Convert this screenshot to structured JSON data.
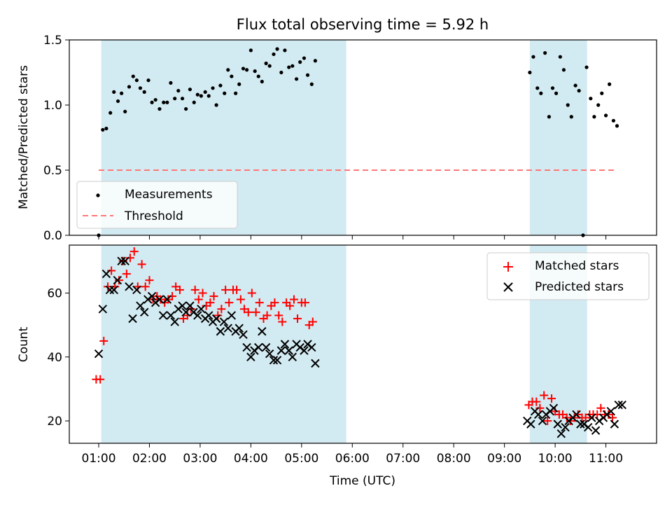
{
  "chart_data": [
    {
      "type": "scatter",
      "title": "Flux total observing time = 5.92 h",
      "ylabel": "Matched/Predicted stars",
      "ylim": [
        0,
        1.5
      ],
      "yticks": [
        "0.0",
        "0.5",
        "1.0",
        "1.5"
      ],
      "xlim_hours": [
        0.42,
        12.0
      ],
      "shaded_spans_hours": [
        [
          1.05,
          5.88
        ],
        [
          9.5,
          10.63
        ]
      ],
      "shade_color": "#add8e6",
      "legend_position": "lower-left",
      "series": [
        {
          "name": "Measurements",
          "color": "#000000",
          "marker": "dot",
          "points": [
            [
              1.0,
              0.0
            ],
            [
              1.08,
              0.81
            ],
            [
              1.15,
              0.82
            ],
            [
              1.23,
              0.94
            ],
            [
              1.3,
              1.1
            ],
            [
              1.38,
              1.03
            ],
            [
              1.45,
              1.09
            ],
            [
              1.52,
              0.95
            ],
            [
              1.6,
              1.14
            ],
            [
              1.68,
              1.22
            ],
            [
              1.75,
              1.19
            ],
            [
              1.82,
              1.13
            ],
            [
              1.9,
              1.1
            ],
            [
              1.98,
              1.19
            ],
            [
              2.05,
              1.02
            ],
            [
              2.12,
              1.04
            ],
            [
              2.2,
              0.97
            ],
            [
              2.28,
              1.02
            ],
            [
              2.35,
              1.02
            ],
            [
              2.42,
              1.17
            ],
            [
              2.5,
              1.05
            ],
            [
              2.57,
              1.11
            ],
            [
              2.65,
              1.05
            ],
            [
              2.72,
              0.97
            ],
            [
              2.8,
              1.12
            ],
            [
              2.88,
              1.02
            ],
            [
              2.95,
              1.08
            ],
            [
              3.02,
              1.07
            ],
            [
              3.1,
              1.1
            ],
            [
              3.17,
              1.07
            ],
            [
              3.25,
              1.13
            ],
            [
              3.32,
              1.0
            ],
            [
              3.4,
              1.15
            ],
            [
              3.48,
              1.09
            ],
            [
              3.55,
              1.27
            ],
            [
              3.62,
              1.22
            ],
            [
              3.7,
              1.09
            ],
            [
              3.77,
              1.16
            ],
            [
              3.85,
              1.28
            ],
            [
              3.92,
              1.27
            ],
            [
              4.0,
              1.42
            ],
            [
              4.08,
              1.26
            ],
            [
              4.15,
              1.22
            ],
            [
              4.22,
              1.18
            ],
            [
              4.3,
              1.32
            ],
            [
              4.37,
              1.3
            ],
            [
              4.45,
              1.39
            ],
            [
              4.52,
              1.43
            ],
            [
              4.6,
              1.25
            ],
            [
              4.67,
              1.42
            ],
            [
              4.75,
              1.29
            ],
            [
              4.82,
              1.3
            ],
            [
              4.9,
              1.2
            ],
            [
              4.97,
              1.33
            ],
            [
              5.05,
              1.36
            ],
            [
              5.12,
              1.23
            ],
            [
              5.2,
              1.16
            ],
            [
              5.27,
              1.34
            ],
            [
              9.5,
              1.25
            ],
            [
              9.57,
              1.37
            ],
            [
              9.65,
              1.13
            ],
            [
              9.72,
              1.09
            ],
            [
              9.8,
              1.4
            ],
            [
              9.88,
              0.91
            ],
            [
              9.95,
              1.13
            ],
            [
              10.02,
              1.09
            ],
            [
              10.1,
              1.37
            ],
            [
              10.17,
              1.27
            ],
            [
              10.25,
              1.0
            ],
            [
              10.32,
              0.91
            ],
            [
              10.4,
              1.15
            ],
            [
              10.47,
              1.11
            ],
            [
              10.55,
              0.0
            ],
            [
              10.62,
              1.29
            ],
            [
              10.7,
              1.05
            ],
            [
              10.77,
              0.91
            ],
            [
              10.85,
              1.0
            ],
            [
              10.92,
              1.09
            ],
            [
              11.0,
              0.92
            ],
            [
              11.07,
              1.16
            ],
            [
              11.15,
              0.88
            ],
            [
              11.22,
              0.84
            ]
          ]
        },
        {
          "name": "Threshold",
          "color": "#ff7777",
          "style": "dashed",
          "x_range_hours": [
            1.0,
            11.2
          ],
          "y": 0.5
        }
      ]
    },
    {
      "type": "scatter",
      "xlabel": "Time (UTC)",
      "ylabel": "Count",
      "ylim": [
        13,
        75
      ],
      "yticks": [
        "20",
        "40",
        "60"
      ],
      "xticks": [
        "01:00",
        "02:00",
        "03:00",
        "04:00",
        "05:00",
        "06:00",
        "07:00",
        "08:00",
        "09:00",
        "10:00",
        "11:00"
      ],
      "xlim_hours": [
        0.42,
        12.0
      ],
      "shaded_spans_hours": [
        [
          1.05,
          5.88
        ],
        [
          9.5,
          10.63
        ]
      ],
      "legend_position": "top-right",
      "series": [
        {
          "name": "Matched stars",
          "color": "#ff0000",
          "marker": "plus",
          "points": [
            [
              0.95,
              33
            ],
            [
              1.03,
              33
            ],
            [
              1.1,
              45
            ],
            [
              1.18,
              62
            ],
            [
              1.25,
              67
            ],
            [
              1.32,
              62
            ],
            [
              1.4,
              64
            ],
            [
              1.48,
              70
            ],
            [
              1.55,
              66
            ],
            [
              1.62,
              71
            ],
            [
              1.7,
              73
            ],
            [
              1.77,
              62
            ],
            [
              1.85,
              69
            ],
            [
              1.92,
              62
            ],
            [
              2.0,
              64
            ],
            [
              2.07,
              58
            ],
            [
              2.15,
              59
            ],
            [
              2.22,
              58
            ],
            [
              2.3,
              57
            ],
            [
              2.37,
              58
            ],
            [
              2.45,
              59
            ],
            [
              2.52,
              62
            ],
            [
              2.6,
              61
            ],
            [
              2.67,
              52
            ],
            [
              2.75,
              53
            ],
            [
              2.82,
              55
            ],
            [
              2.9,
              61
            ],
            [
              2.97,
              58
            ],
            [
              3.05,
              60
            ],
            [
              3.12,
              56
            ],
            [
              3.2,
              57
            ],
            [
              3.27,
              59
            ],
            [
              3.35,
              53
            ],
            [
              3.42,
              55
            ],
            [
              3.5,
              61
            ],
            [
              3.57,
              57
            ],
            [
              3.65,
              61
            ],
            [
              3.72,
              61
            ],
            [
              3.8,
              58
            ],
            [
              3.87,
              55
            ],
            [
              3.95,
              54
            ],
            [
              4.02,
              60
            ],
            [
              4.1,
              54
            ],
            [
              4.17,
              57
            ],
            [
              4.25,
              52
            ],
            [
              4.32,
              53
            ],
            [
              4.4,
              56
            ],
            [
              4.47,
              57
            ],
            [
              4.55,
              53
            ],
            [
              4.62,
              51
            ],
            [
              4.7,
              57
            ],
            [
              4.77,
              56
            ],
            [
              4.85,
              58
            ],
            [
              4.92,
              52
            ],
            [
              5.0,
              57
            ],
            [
              5.07,
              57
            ],
            [
              5.15,
              50
            ],
            [
              5.22,
              51
            ],
            [
              9.48,
              25
            ],
            [
              9.55,
              26
            ],
            [
              9.63,
              26
            ],
            [
              9.7,
              24
            ],
            [
              9.78,
              28
            ],
            [
              9.85,
              20
            ],
            [
              9.93,
              27
            ],
            [
              10.0,
              23
            ],
            [
              10.08,
              22
            ],
            [
              10.15,
              22
            ],
            [
              10.23,
              21
            ],
            [
              10.3,
              20
            ],
            [
              10.38,
              21
            ],
            [
              10.45,
              22
            ],
            [
              10.53,
              21
            ],
            [
              10.6,
              21
            ],
            [
              10.68,
              22
            ],
            [
              10.75,
              22
            ],
            [
              10.83,
              22
            ],
            [
              10.9,
              24
            ],
            [
              10.98,
              22
            ],
            [
              11.05,
              22
            ],
            [
              11.13,
              21
            ]
          ]
        },
        {
          "name": "Predicted stars",
          "color": "#000000",
          "marker": "x",
          "points": [
            [
              1.0,
              41
            ],
            [
              1.08,
              55
            ],
            [
              1.15,
              66
            ],
            [
              1.22,
              61
            ],
            [
              1.3,
              61
            ],
            [
              1.37,
              64
            ],
            [
              1.45,
              70
            ],
            [
              1.52,
              70
            ],
            [
              1.6,
              62
            ],
            [
              1.67,
              52
            ],
            [
              1.75,
              61
            ],
            [
              1.82,
              56
            ],
            [
              1.9,
              54
            ],
            [
              1.97,
              58
            ],
            [
              2.05,
              59
            ],
            [
              2.12,
              57
            ],
            [
              2.2,
              58
            ],
            [
              2.27,
              53
            ],
            [
              2.35,
              58
            ],
            [
              2.42,
              53
            ],
            [
              2.5,
              51
            ],
            [
              2.57,
              55
            ],
            [
              2.65,
              56
            ],
            [
              2.72,
              54
            ],
            [
              2.8,
              56
            ],
            [
              2.87,
              54
            ],
            [
              2.95,
              53
            ],
            [
              3.02,
              55
            ],
            [
              3.1,
              52
            ],
            [
              3.17,
              53
            ],
            [
              3.25,
              51
            ],
            [
              3.32,
              52
            ],
            [
              3.4,
              48
            ],
            [
              3.47,
              51
            ],
            [
              3.55,
              49
            ],
            [
              3.62,
              53
            ],
            [
              3.7,
              48
            ],
            [
              3.77,
              49
            ],
            [
              3.85,
              47
            ],
            [
              3.92,
              43
            ],
            [
              4.0,
              40
            ],
            [
              4.07,
              42
            ],
            [
              4.15,
              43
            ],
            [
              4.22,
              48
            ],
            [
              4.3,
              43
            ],
            [
              4.37,
              41
            ],
            [
              4.45,
              39
            ],
            [
              4.52,
              39
            ],
            [
              4.6,
              42
            ],
            [
              4.67,
              44
            ],
            [
              4.75,
              42
            ],
            [
              4.82,
              40
            ],
            [
              4.9,
              44
            ],
            [
              4.97,
              43
            ],
            [
              5.05,
              42
            ],
            [
              5.12,
              44
            ],
            [
              5.2,
              43
            ],
            [
              5.27,
              38
            ],
            [
              9.45,
              20
            ],
            [
              9.52,
              19
            ],
            [
              9.6,
              23
            ],
            [
              9.67,
              22
            ],
            [
              9.75,
              20
            ],
            [
              9.82,
              22
            ],
            [
              9.9,
              23
            ],
            [
              9.97,
              24
            ],
            [
              10.05,
              19
            ],
            [
              10.12,
              16
            ],
            [
              10.2,
              18
            ],
            [
              10.27,
              20
            ],
            [
              10.35,
              21
            ],
            [
              10.42,
              22
            ],
            [
              10.5,
              19
            ],
            [
              10.57,
              19
            ],
            [
              10.65,
              18
            ],
            [
              10.72,
              21
            ],
            [
              10.8,
              17
            ],
            [
              10.87,
              20
            ],
            [
              10.95,
              21
            ],
            [
              11.02,
              22
            ],
            [
              11.1,
              23
            ],
            [
              11.17,
              19
            ],
            [
              11.25,
              25
            ],
            [
              11.32,
              25
            ]
          ]
        }
      ]
    }
  ]
}
